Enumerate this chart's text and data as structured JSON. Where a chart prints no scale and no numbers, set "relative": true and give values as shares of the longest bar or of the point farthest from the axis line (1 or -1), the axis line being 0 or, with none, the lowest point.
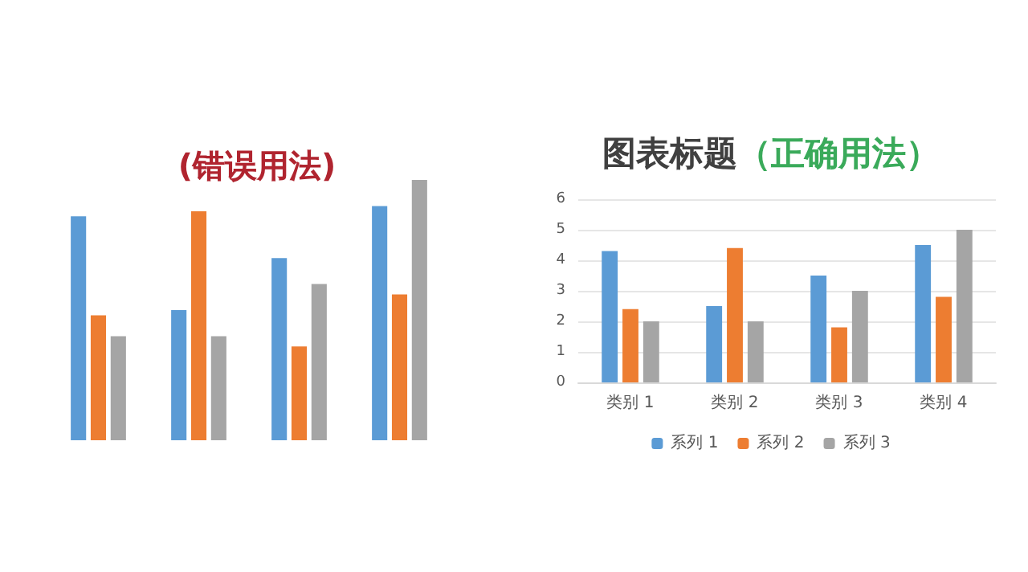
{
  "chart_data": [
    {
      "type": "bar",
      "title": "(错误用法)",
      "relative": true,
      "categories": [
        null,
        null,
        null,
        null
      ],
      "series": [
        {
          "color": "#5b9bd5",
          "values": [
            0.86,
            0.5,
            0.7,
            0.9
          ]
        },
        {
          "color": "#ed7d31",
          "values": [
            0.48,
            0.88,
            0.36,
            0.56
          ]
        },
        {
          "color": "#a5a5a5",
          "values": [
            0.4,
            0.4,
            0.6,
            1
          ]
        }
      ],
      "grid": false,
      "legend": false
    },
    {
      "type": "bar",
      "title": "图表标题",
      "subtitle": "（正确用法）",
      "categories": [
        "类别 1",
        "类别 2",
        "类别 3",
        "类别 4"
      ],
      "series": [
        {
          "name": "系列 1",
          "color": "#5b9bd5",
          "values": [
            4.3,
            2.5,
            3.5,
            4.5
          ]
        },
        {
          "name": "系列 2",
          "color": "#ed7d31",
          "values": [
            2.4,
            4.4,
            1.8,
            2.8
          ]
        },
        {
          "name": "系列 3",
          "color": "#a5a5a5",
          "values": [
            2,
            2,
            3,
            5
          ]
        }
      ],
      "ylim": [
        0,
        6
      ],
      "yticks": [
        0,
        1,
        2,
        3,
        4,
        5,
        6
      ],
      "grid": "y",
      "legend": "bottom"
    }
  ]
}
